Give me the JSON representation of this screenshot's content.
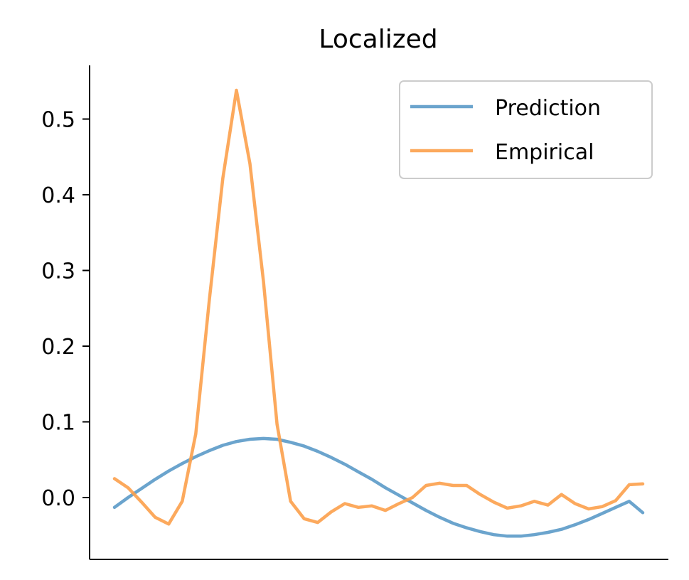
{
  "chart_data": {
    "type": "line",
    "title": "Localized",
    "xlabel": "",
    "ylabel": "",
    "x_ticks_visible": false,
    "grid": false,
    "legend_position": "top-right",
    "xlim": [
      0,
      40
    ],
    "ylim": [
      -0.08,
      0.57
    ],
    "yticks": [
      0.0,
      0.1,
      0.2,
      0.3,
      0.4,
      0.5
    ],
    "ytick_labels": [
      "0.0",
      "0.1",
      "0.2",
      "0.3",
      "0.4",
      "0.5"
    ],
    "series": [
      {
        "name": "Prediction",
        "color": "#5b9ac8",
        "x": [
          0,
          1,
          2,
          3,
          4,
          5,
          6,
          7,
          8,
          9,
          10,
          11,
          12,
          13,
          14,
          15,
          16,
          17,
          18,
          19,
          20,
          21,
          22,
          23,
          24,
          25,
          26,
          27,
          28,
          29,
          30,
          31,
          32,
          33,
          34,
          35,
          36,
          37,
          38,
          39
        ],
        "values": [
          -0.013,
          0.0,
          0.012,
          0.024,
          0.035,
          0.045,
          0.054,
          0.062,
          0.069,
          0.074,
          0.077,
          0.078,
          0.077,
          0.073,
          0.068,
          0.061,
          0.053,
          0.044,
          0.034,
          0.024,
          0.013,
          0.003,
          -0.007,
          -0.017,
          -0.026,
          -0.034,
          -0.04,
          -0.045,
          -0.049,
          -0.051,
          -0.051,
          -0.049,
          -0.046,
          -0.042,
          -0.036,
          -0.029,
          -0.021,
          -0.013,
          -0.005,
          -0.02
        ]
      },
      {
        "name": "Empirical",
        "color": "#fca04b",
        "x": [
          0,
          1,
          2,
          3,
          4,
          5,
          6,
          7,
          8,
          9,
          10,
          11,
          12,
          13,
          14,
          15,
          16,
          17,
          18,
          19,
          20,
          21,
          22,
          23,
          24,
          25,
          26,
          27,
          28,
          29,
          30,
          31,
          32,
          33,
          34,
          35,
          36,
          37,
          38,
          39
        ],
        "values": [
          0.025,
          0.013,
          -0.006,
          -0.026,
          -0.035,
          -0.005,
          0.084,
          0.261,
          0.422,
          0.538,
          0.441,
          0.285,
          0.097,
          -0.005,
          -0.028,
          -0.033,
          -0.019,
          -0.008,
          -0.013,
          -0.011,
          -0.017,
          -0.008,
          0.0,
          0.016,
          0.019,
          0.016,
          0.016,
          0.004,
          -0.006,
          -0.014,
          -0.011,
          -0.005,
          -0.01,
          0.004,
          -0.008,
          -0.015,
          -0.012,
          -0.004,
          0.017,
          0.018
        ]
      }
    ]
  }
}
